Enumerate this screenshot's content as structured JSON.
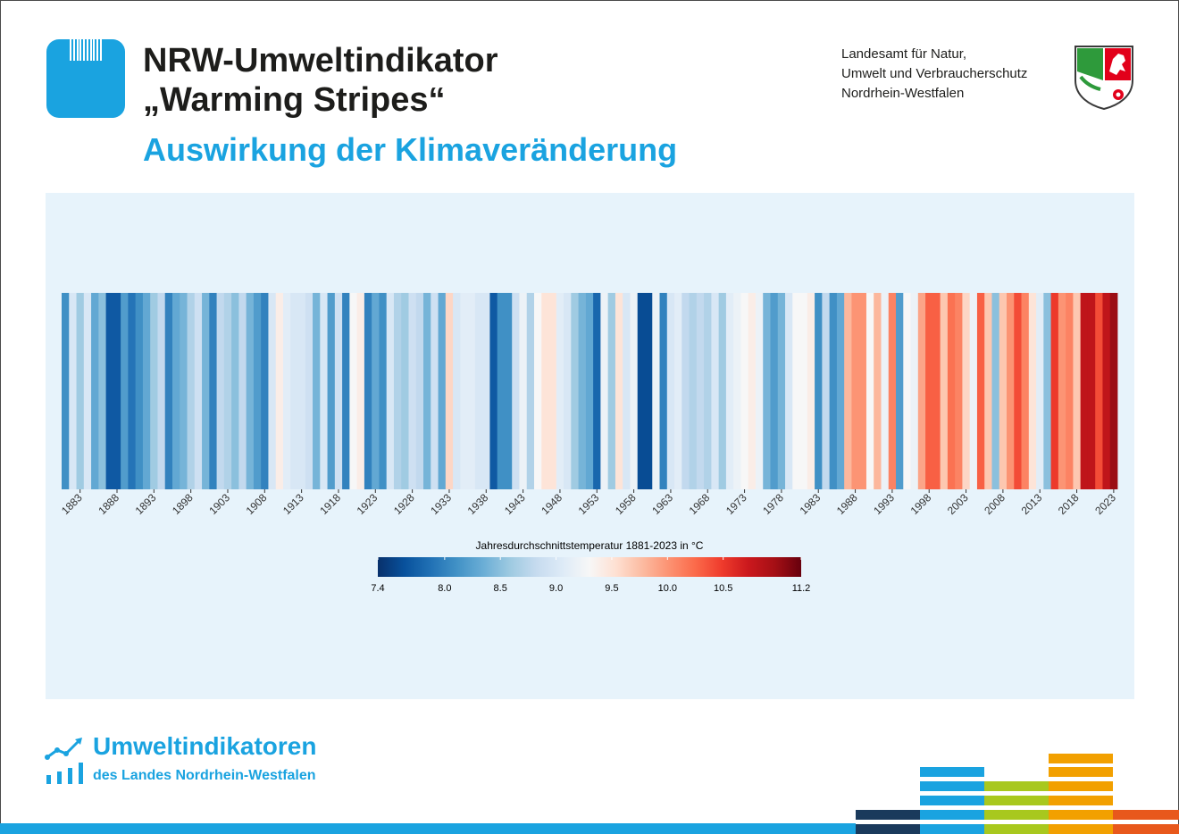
{
  "header": {
    "title_line1": "NRW-Umweltindikator",
    "title_line2": "„Warming Stripes“",
    "subtitle": "Auswirkung der Klimaveränderung"
  },
  "agency": {
    "line1": "Landesamt für Natur,",
    "line2": "Umwelt und Verbraucherschutz",
    "line3": "Nordrhein-Westfalen"
  },
  "footer": {
    "title": "Umweltindikatoren",
    "subtitle": "des Landes Nordrhein-Westfalen"
  },
  "colors": {
    "accent_blue": "#1aa3e0",
    "panel_bg": "#e7f3fb",
    "deco_navy": "#1a3a5c",
    "deco_green": "#a8c81e",
    "deco_orange": "#f2a000",
    "deco_red_orange": "#e8581c"
  },
  "icons": [
    "app-stripes-icon",
    "nrw-crest-icon",
    "trend-chart-icon"
  ],
  "chart_data": {
    "type": "heatmap",
    "legend_title": "Jahresdurchschnittstemperatur 1881-2023 in °C",
    "x_start_year": 1881,
    "x_end_year": 2023,
    "x_tick_labels": [
      "1883",
      "1888",
      "1893",
      "1898",
      "1903",
      "1908",
      "1913",
      "1918",
      "1923",
      "1928",
      "1933",
      "1938",
      "1943",
      "1948",
      "1953",
      "1958",
      "1963",
      "1968",
      "1973",
      "1978",
      "1983",
      "1988",
      "1993",
      "1998",
      "2003",
      "2008",
      "2013",
      "2018",
      "2023"
    ],
    "x": [
      1881,
      1882,
      1883,
      1884,
      1885,
      1886,
      1887,
      1888,
      1889,
      1890,
      1891,
      1892,
      1893,
      1894,
      1895,
      1896,
      1897,
      1898,
      1899,
      1900,
      1901,
      1902,
      1903,
      1904,
      1905,
      1906,
      1907,
      1908,
      1909,
      1910,
      1911,
      1912,
      1913,
      1914,
      1915,
      1916,
      1917,
      1918,
      1919,
      1920,
      1921,
      1922,
      1923,
      1924,
      1925,
      1926,
      1927,
      1928,
      1929,
      1930,
      1931,
      1932,
      1933,
      1934,
      1935,
      1936,
      1937,
      1938,
      1939,
      1940,
      1941,
      1942,
      1943,
      1944,
      1945,
      1946,
      1947,
      1948,
      1949,
      1950,
      1951,
      1952,
      1953,
      1954,
      1955,
      1956,
      1957,
      1958,
      1959,
      1960,
      1961,
      1962,
      1963,
      1964,
      1965,
      1966,
      1967,
      1968,
      1969,
      1970,
      1971,
      1972,
      1973,
      1974,
      1975,
      1976,
      1977,
      1978,
      1979,
      1980,
      1981,
      1982,
      1983,
      1984,
      1985,
      1986,
      1987,
      1988,
      1989,
      1990,
      1991,
      1992,
      1993,
      1994,
      1995,
      1996,
      1997,
      1998,
      1999,
      2000,
      2001,
      2002,
      2003,
      2004,
      2005,
      2006,
      2007,
      2008,
      2009,
      2010,
      2011,
      2012,
      2013,
      2014,
      2015,
      2016,
      2017,
      2018,
      2019,
      2020,
      2021,
      2022,
      2023
    ],
    "values": [
      8.1,
      9.0,
      8.6,
      9.0,
      8.3,
      8.5,
      7.7,
      7.7,
      8.2,
      7.9,
      8.1,
      8.3,
      8.6,
      8.8,
      8.0,
      8.3,
      8.4,
      8.7,
      8.9,
      8.4,
      8.0,
      8.8,
      8.7,
      8.5,
      8.8,
      8.4,
      8.2,
      8.0,
      9.0,
      9.4,
      9.1,
      9.0,
      9.0,
      8.9,
      8.4,
      9.0,
      8.2,
      8.9,
      8.0,
      9.3,
      9.4,
      8.0,
      8.3,
      8.1,
      9.0,
      8.7,
      8.6,
      8.9,
      8.8,
      8.4,
      8.9,
      8.3,
      9.6,
      9.0,
      9.1,
      9.1,
      9.0,
      9.0,
      7.7,
      8.1,
      8.1,
      8.9,
      9.2,
      8.7,
      9.3,
      9.5,
      9.5,
      9.1,
      9.0,
      8.6,
      8.4,
      8.3,
      7.8,
      9.2,
      8.6,
      9.5,
      9.0,
      9.2,
      7.6,
      7.6,
      9.2,
      8.0,
      9.0,
      9.1,
      8.8,
      8.7,
      8.8,
      8.7,
      9.0,
      8.6,
      9.1,
      9.2,
      9.3,
      9.4,
      9.2,
      8.4,
      8.2,
      8.4,
      9.0,
      9.3,
      9.3,
      9.4,
      8.1,
      8.8,
      8.1,
      8.3,
      9.8,
      10.0,
      10.0,
      9.3,
      9.8,
      9.2,
      10.1,
      8.2,
      9.3,
      9.2,
      9.9,
      10.3,
      10.3,
      9.7,
      10.2,
      10.1,
      9.6,
      9.2,
      10.3,
      9.7,
      8.5,
      9.7,
      10.0,
      10.4,
      10.1,
      9.5,
      9.1,
      8.5,
      10.5,
      10.0,
      10.1,
      9.7,
      10.8,
      10.8,
      10.4,
      10.8,
      11.0
    ],
    "color_scale": {
      "min": 7.4,
      "max": 11.2,
      "tick_values": [
        7.4,
        8.0,
        8.5,
        9.0,
        9.5,
        10.0,
        10.5,
        11.2
      ],
      "tick_labels": [
        "7.4",
        "8.0",
        "8.5",
        "9.0",
        "9.5",
        "10.0",
        "10.5",
        "11.2"
      ],
      "stops": [
        "#08306b",
        "#08519c",
        "#2171b5",
        "#4292c6",
        "#6baed6",
        "#9ecae1",
        "#c6dbef",
        "#deebf7",
        "#f7f7f7",
        "#fee0d2",
        "#fcbba1",
        "#fc9272",
        "#fb6a4a",
        "#ef3b2c",
        "#cb181d",
        "#a50f15",
        "#67000d"
      ]
    },
    "legend_placement": "bottom-center",
    "grid": false
  }
}
